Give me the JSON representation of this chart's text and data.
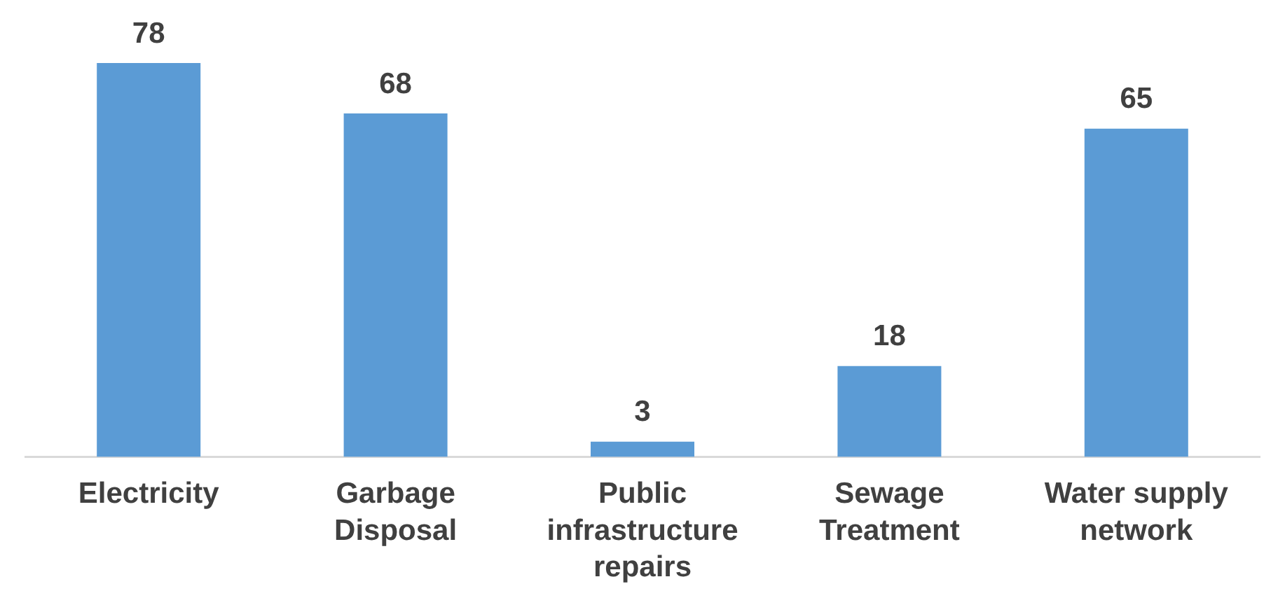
{
  "chart_data": {
    "type": "bar",
    "categories": [
      "Electricity",
      "Garbage Disposal",
      "Public infrastructure repairs",
      "Sewage Treatment",
      "Water supply network"
    ],
    "values": [
      78,
      68,
      3,
      18,
      65
    ],
    "color": "#5b9bd5",
    "data_labels": true,
    "grid": false,
    "legend": false,
    "tick_labels": "x"
  }
}
